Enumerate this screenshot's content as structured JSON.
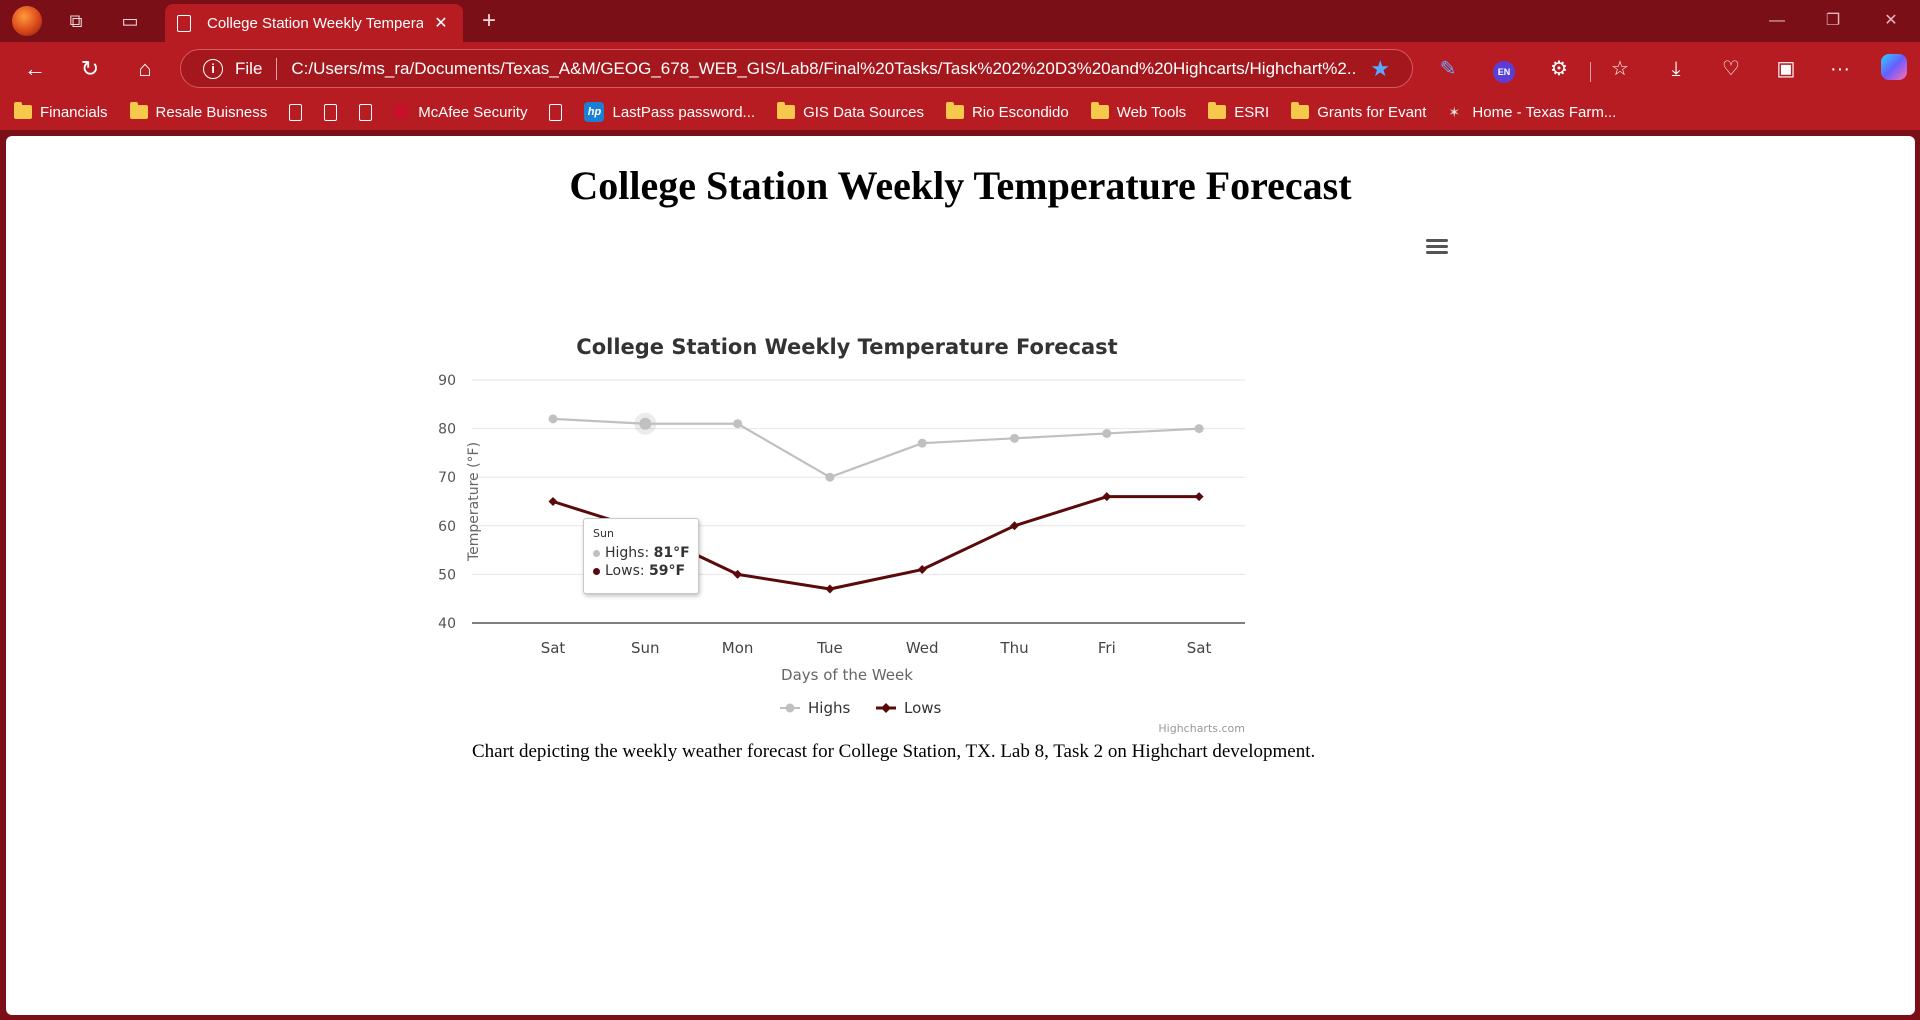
{
  "browser": {
    "tab": {
      "title": "College Station Weekly Temperature Forecast"
    },
    "address": {
      "scheme": "File",
      "url": "C:/Users/ms_ra/Documents/Texas_A&M/GEOG_678_WEB_GIS/Lab8/Final%20Tasks/Task%202%20D3%20and%20Highcarts/Highchart%2..."
    },
    "toolbar_icons": [
      "pen-icon",
      "en-icon",
      "extensions-icon",
      "favorites-icon",
      "downloads-icon",
      "health-icon",
      "collections-icon",
      "more-icon",
      "copilot-icon"
    ],
    "en_badge": "EN",
    "accent": "#b71c22",
    "frame": "#7a0f18"
  },
  "bookmarks": [
    {
      "label": "Financials",
      "icon": "folder-icon"
    },
    {
      "label": "Resale Buisness",
      "icon": "folder-icon"
    },
    {
      "label": "",
      "icon": "doc-icon"
    },
    {
      "label": "",
      "icon": "doc-icon"
    },
    {
      "label": "",
      "icon": "doc-icon"
    },
    {
      "label": "McAfee Security",
      "icon": "mcafee-icon"
    },
    {
      "label": "",
      "icon": "doc-icon"
    },
    {
      "label": "LastPass password...",
      "icon": "hp-icon"
    },
    {
      "label": "GIS Data Sources",
      "icon": "folder-icon"
    },
    {
      "label": "Rio Escondido",
      "icon": "folder-icon"
    },
    {
      "label": "Web Tools",
      "icon": "folder-icon"
    },
    {
      "label": "ESRI",
      "icon": "folder-icon"
    },
    {
      "label": "Grants for Evant",
      "icon": "folder-icon"
    },
    {
      "label": "Home - Texas Farm...",
      "icon": "texas-icon"
    }
  ],
  "page": {
    "heading": "College Station Weekly Temperature Forecast",
    "caption": "Chart depicting the weekly weather forecast for College Station, TX. Lab 8, Task 2 on Highchart development."
  },
  "chart_data": {
    "type": "line",
    "title": "College Station Weekly Temperature Forecast",
    "xlabel": "Days of the Week",
    "ylabel": "Temperature (°F)",
    "categories": [
      "Sat",
      "Sun",
      "Mon",
      "Tue",
      "Wed",
      "Thu",
      "Fri",
      "Sat"
    ],
    "ylim": [
      40,
      90
    ],
    "yticks": [
      40,
      50,
      60,
      70,
      80,
      90
    ],
    "grid": true,
    "legend_position": "bottom-center",
    "credits": "Highcharts.com",
    "series": [
      {
        "name": "Highs",
        "values": [
          82,
          81,
          81,
          70,
          77,
          78,
          79,
          80
        ],
        "color": "#c0c0c0",
        "marker": "circle"
      },
      {
        "name": "Lows",
        "values": [
          65,
          59,
          50,
          47,
          51,
          60,
          66,
          66
        ],
        "color": "#5a0a0a",
        "marker": "diamond"
      }
    ],
    "tooltip": {
      "header": "Sun",
      "rows": [
        {
          "label": "Highs: ",
          "value": "81°F",
          "color": "#c0c0c0"
        },
        {
          "label": "Lows: ",
          "value": "59°F",
          "color": "#5a0a0a"
        }
      ]
    }
  }
}
